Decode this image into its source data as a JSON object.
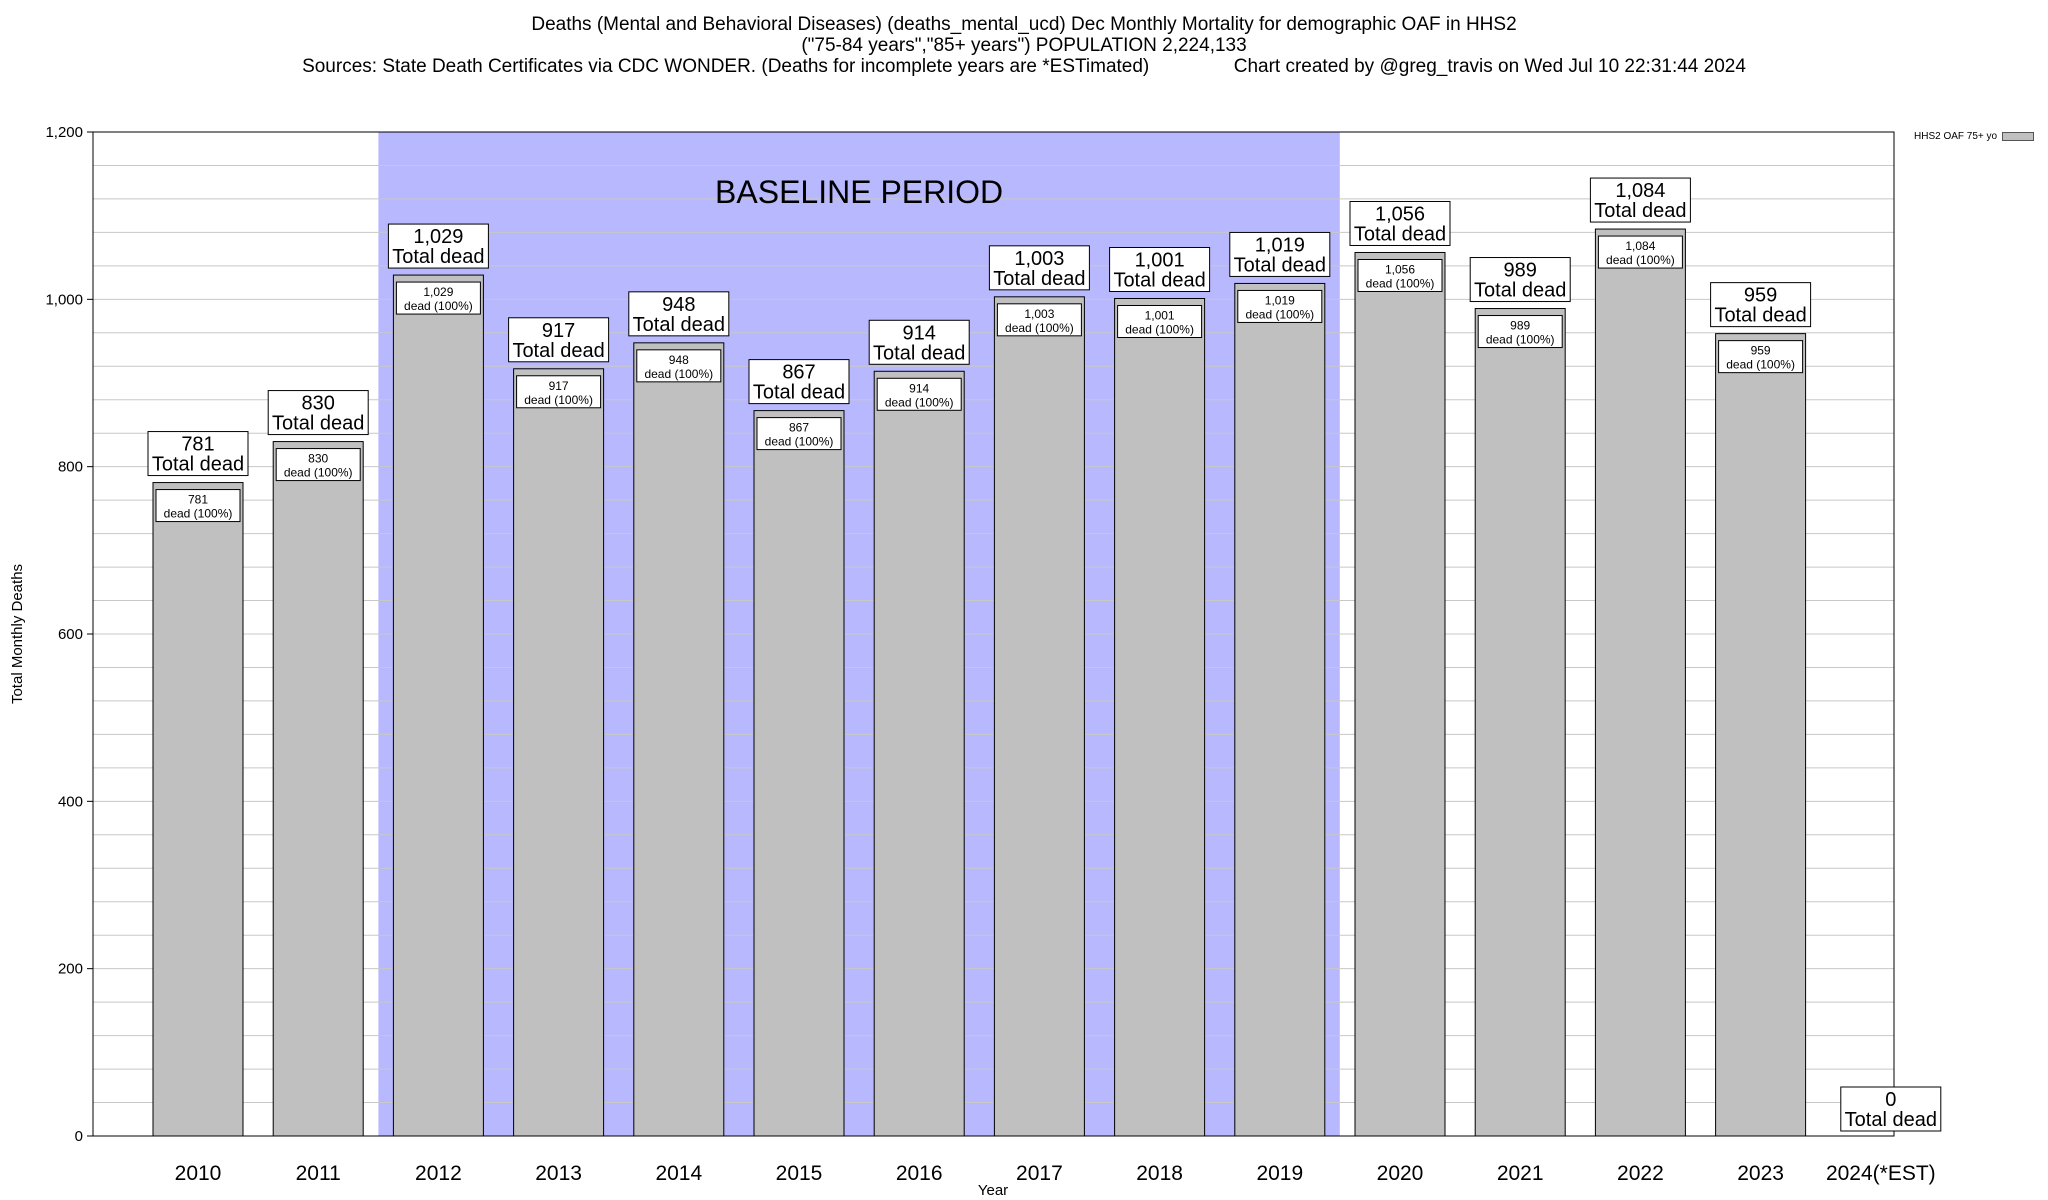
{
  "header": {
    "line1": "Deaths (Mental and Behavioral Diseases) (deaths_mental_ucd) Dec Monthly Mortality for demographic OAF in HHS2",
    "line2": "(\"75-84 years\",\"85+ years\") POPULATION 2,224,133",
    "line3": "Sources: State Death Certificates via CDC WONDER. (Deaths for incomplete years are *ESTimated)                Chart created by @greg_travis on Wed Jul 10 22:31:44 2024"
  },
  "colors": {
    "bar": "#c0c0c0",
    "baseline": "#b8b8ff",
    "grid": "#c8c8c8"
  },
  "chart_data": {
    "type": "bar",
    "xlabel": "Year",
    "ylabel": "Total Monthly Deaths",
    "ylim": [
      0,
      1200
    ],
    "yticks": [
      0,
      200,
      400,
      600,
      800,
      1000,
      1200
    ],
    "ytick_labels": [
      "0",
      "200",
      "400",
      "600",
      "800",
      "1,000",
      "1,200"
    ],
    "grid": true,
    "legend_placement": "top-right",
    "categories": [
      "2010",
      "2011",
      "2012",
      "2013",
      "2014",
      "2015",
      "2016",
      "2017",
      "2018",
      "2019",
      "2020",
      "2021",
      "2022",
      "2023",
      "2024(*EST)"
    ],
    "series": [
      {
        "name": "HHS2 OAF 75+ yo",
        "values": [
          781,
          830,
          1029,
          917,
          948,
          867,
          914,
          1003,
          1001,
          1019,
          1056,
          989,
          1084,
          959,
          0
        ]
      }
    ],
    "value_labels": [
      "781",
      "830",
      "1,029",
      "917",
      "948",
      "867",
      "914",
      "1,003",
      "1,001",
      "1,019",
      "1,056",
      "989",
      "1,084",
      "959",
      "0"
    ],
    "top_label_suffix": "Total dead",
    "inner_label_suffix": "dead (100%)",
    "baseline_period": {
      "label": "BASELINE PERIOD",
      "from": "2012",
      "to": "2019"
    }
  }
}
